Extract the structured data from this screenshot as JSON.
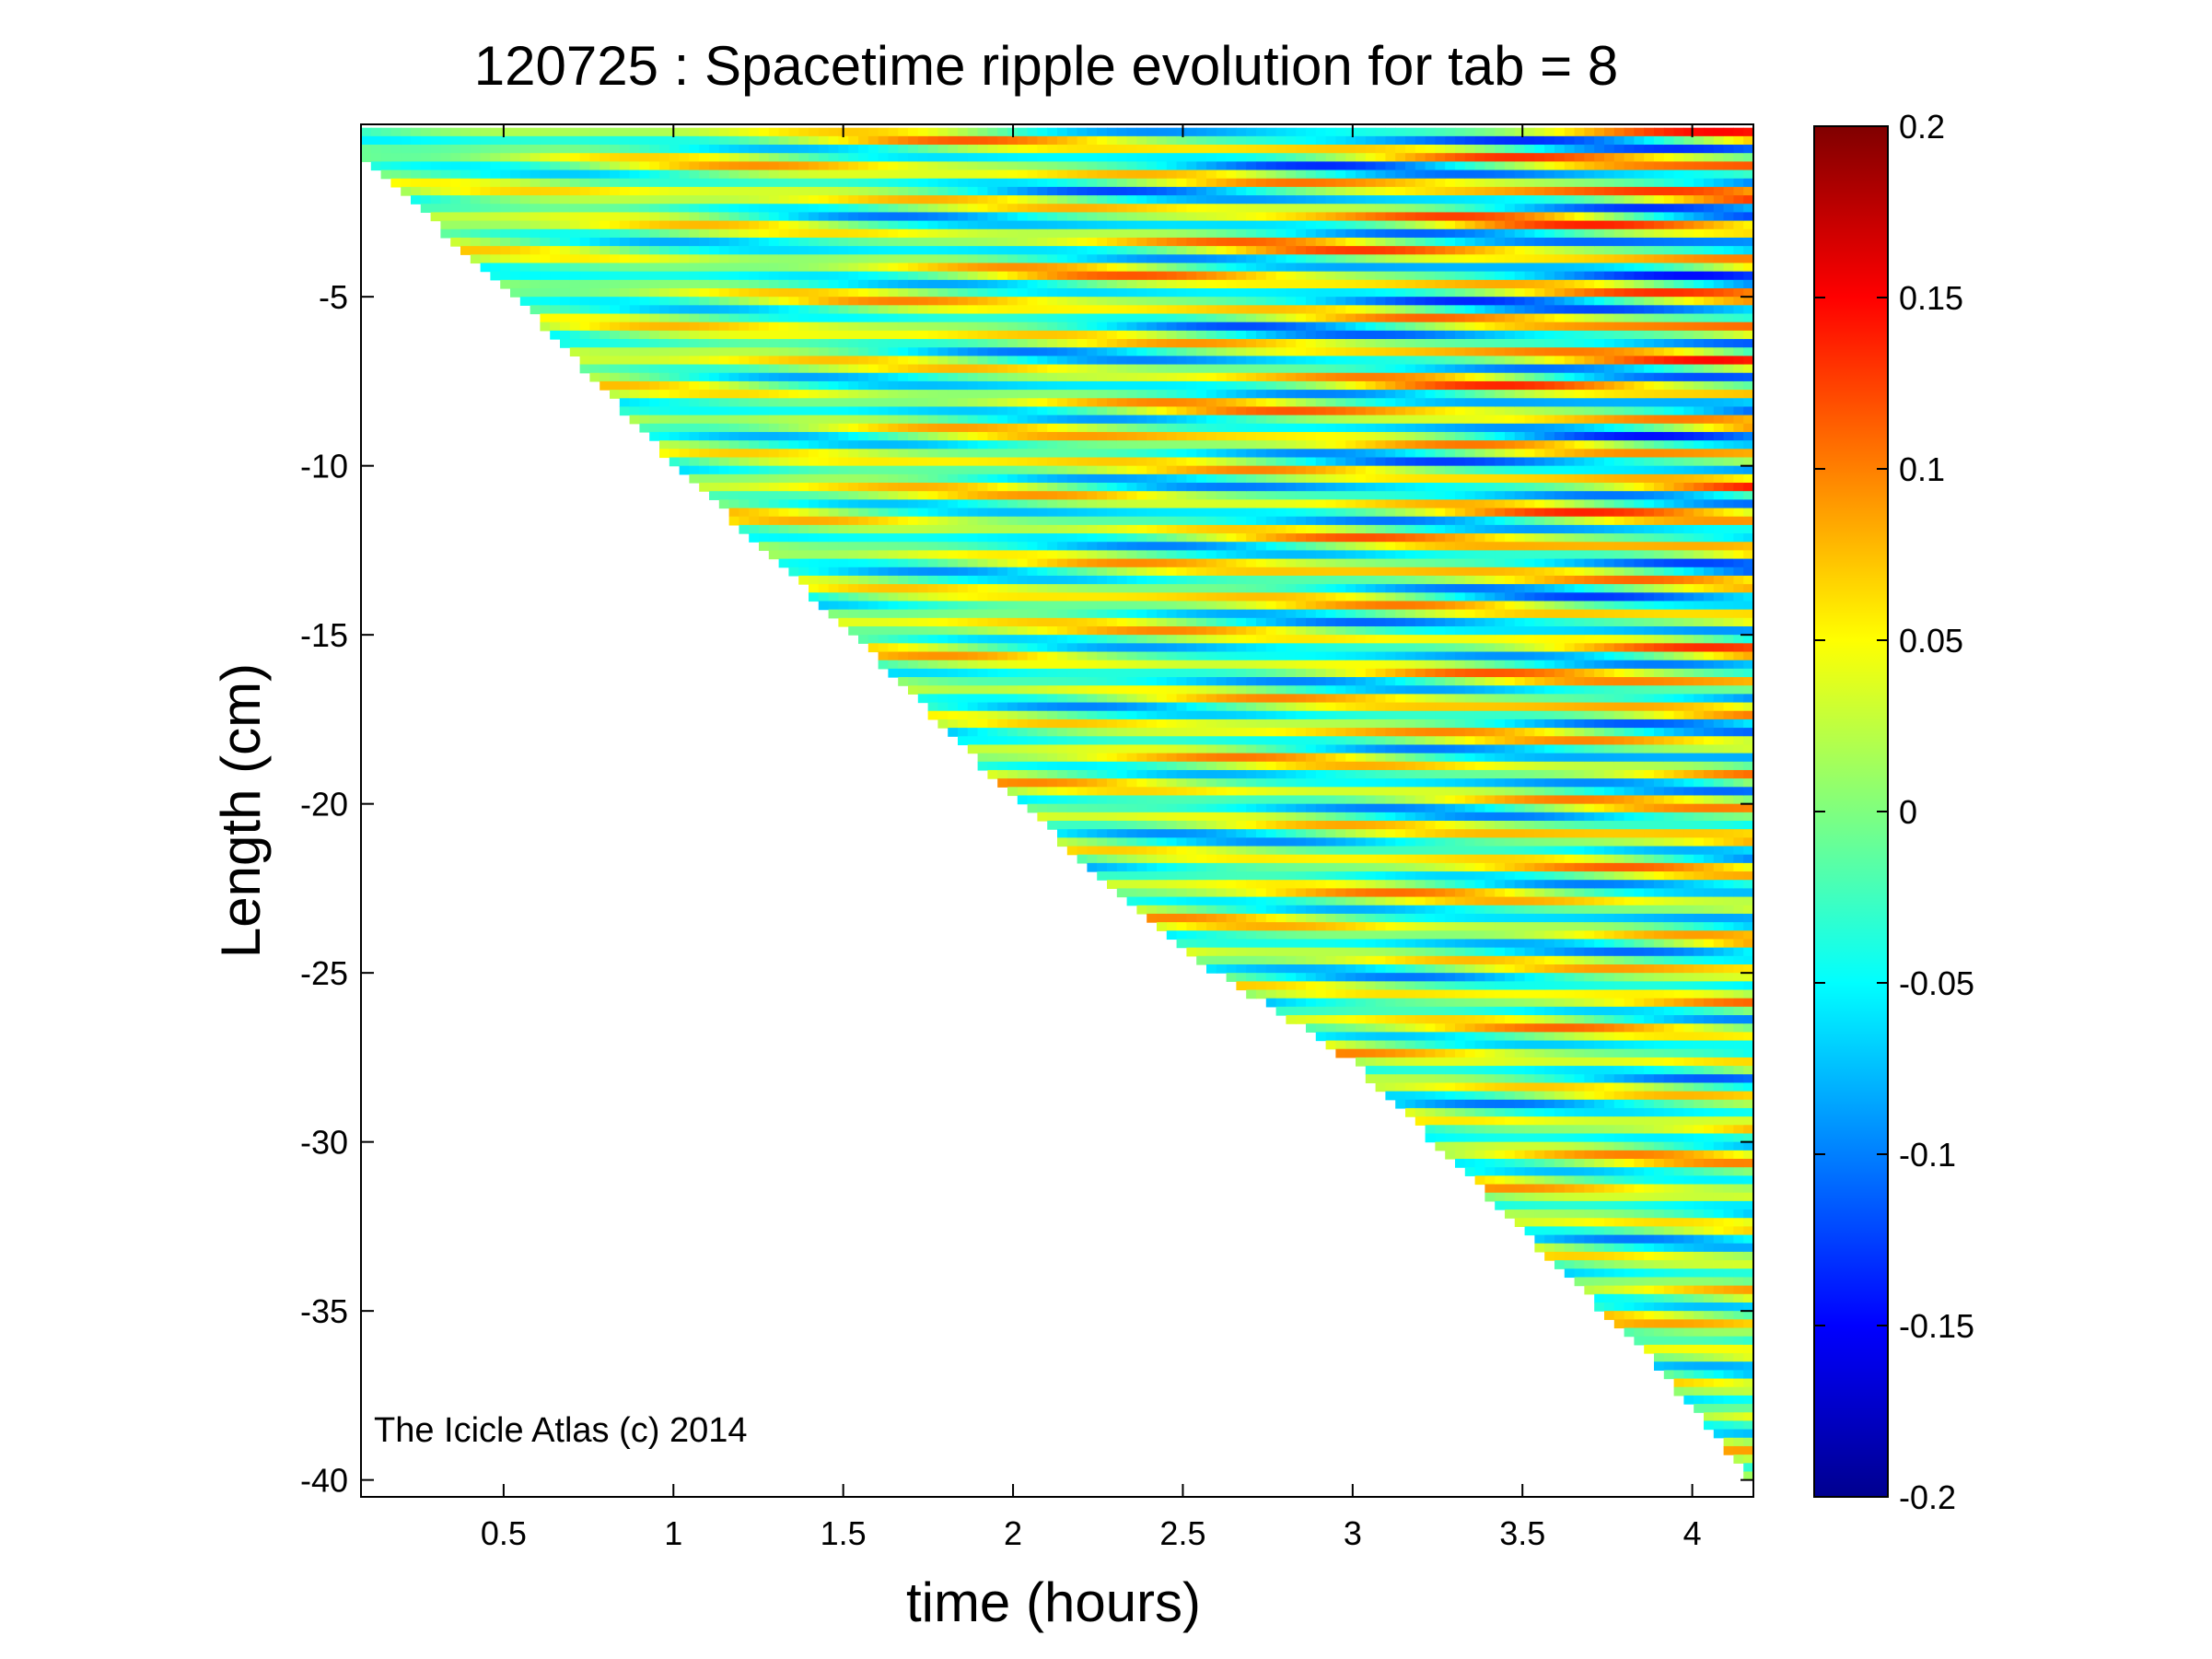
{
  "chart_data": {
    "type": "heatmap",
    "title": "120725 : Spacetime ripple evolution for tab = 8",
    "xlabel": "time (hours)",
    "ylabel": "Length (cm)",
    "xlim": [
      0.08,
      4.18
    ],
    "ylim": [
      -40.5,
      0.1
    ],
    "x_ticks": [
      0.5,
      1,
      1.5,
      2,
      2.5,
      3,
      3.5,
      4
    ],
    "x_tick_labels": [
      "0.5",
      "1",
      "1.5",
      "2",
      "2.5",
      "3",
      "3.5",
      "4"
    ],
    "y_ticks": [
      -5,
      -10,
      -15,
      -20,
      -25,
      -30,
      -35,
      -40
    ],
    "y_tick_labels": [
      "-5",
      "-10",
      "-15",
      "-20",
      "-25",
      "-30",
      "-35",
      "-40"
    ],
    "colorbar": {
      "range": [
        -0.2,
        0.2
      ],
      "ticks": [
        0.2,
        0.15,
        0.1,
        0.05,
        0,
        -0.05,
        -0.1,
        -0.15,
        -0.2
      ],
      "tick_labels": [
        "0.2",
        "0.15",
        "0.1",
        "0.05",
        "0",
        "-0.05",
        "-0.1",
        "-0.15",
        "-0.2"
      ],
      "colormap": "jet"
    },
    "annotation": "The Icicle Atlas (c) 2014",
    "data_region": {
      "description_boundary_x": [
        0.08,
        0.1,
        0.5,
        1.0,
        1.5,
        2.0,
        2.5,
        3.0,
        3.5,
        3.9,
        4.18
      ],
      "description_boundary_y": [
        -0.3,
        -1.0,
        -4.5,
        -9.8,
        -14.6,
        -19.7,
        -24.2,
        -27.5,
        -32.5,
        -36.5,
        -40.0
      ]
    },
    "grid": false
  },
  "colors": {
    "jet_low": "#00008f",
    "jet_mid": "#7fff7f",
    "jet_high": "#800000",
    "background": "#ffffff"
  }
}
